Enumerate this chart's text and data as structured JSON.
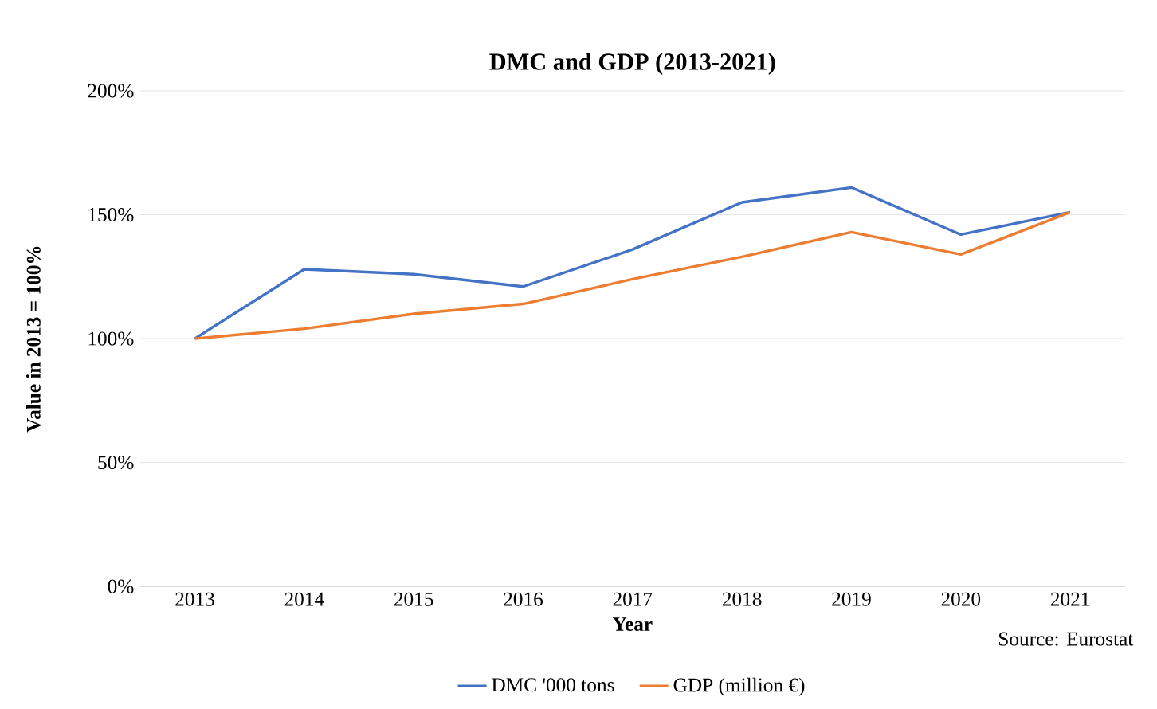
{
  "chart_data": {
    "type": "line",
    "title": "DMC and GDP (2013-2021)",
    "xlabel": "Year",
    "ylabel": "Value in 2013 = 100%",
    "categories": [
      "2013",
      "2014",
      "2015",
      "2016",
      "2017",
      "2018",
      "2019",
      "2020",
      "2021"
    ],
    "series": [
      {
        "name": "DMC '000 tons",
        "color": "#4472c4",
        "values": [
          100,
          128,
          126,
          121,
          136,
          155,
          161,
          142,
          151
        ]
      },
      {
        "name": "GDP (million €)",
        "color": "#ed7d31",
        "values": [
          100,
          104,
          110,
          114,
          124,
          133,
          143,
          134,
          151
        ]
      }
    ],
    "ylim": [
      0,
      200
    ],
    "yticks": [
      {
        "value": 0,
        "label": "0%"
      },
      {
        "value": 50,
        "label": "50%"
      },
      {
        "value": 100,
        "label": "100%"
      },
      {
        "value": 150,
        "label": "150%"
      },
      {
        "value": 200,
        "label": "200%"
      }
    ],
    "grid": "y",
    "legend": "bottom",
    "marker": "none",
    "line_style": "solid",
    "annotations": [
      "Source: Eurostat"
    ]
  }
}
